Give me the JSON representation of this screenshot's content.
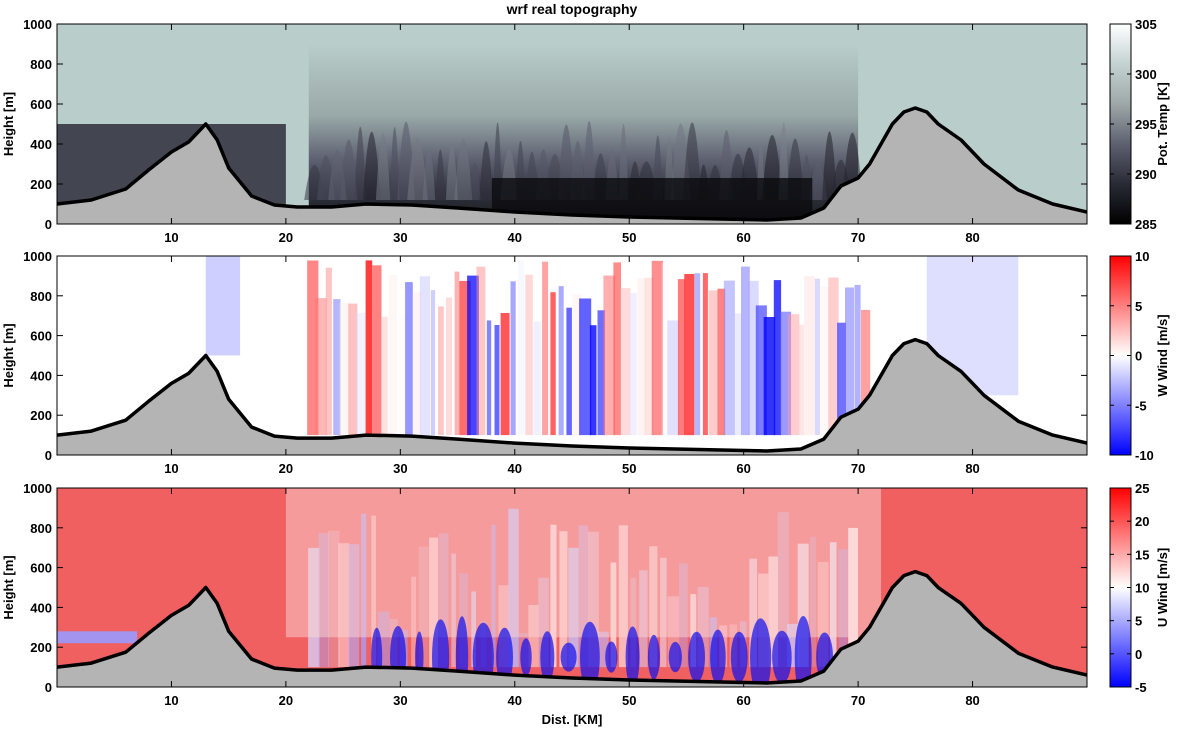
{
  "chart_data": [
    {
      "type": "heatmap",
      "title": "wrf real topography",
      "xlabel": "",
      "ylabel": "Height [m]",
      "colorbar_label": "Pot. Temp [K]",
      "xlim": [
        0,
        90
      ],
      "ylim": [
        0,
        1000
      ],
      "x_ticks": [
        10,
        20,
        30,
        40,
        50,
        60,
        70,
        80
      ],
      "y_ticks": [
        0,
        200,
        400,
        600,
        800,
        1000
      ],
      "clim": [
        285,
        305
      ],
      "colorbar_ticks": [
        285,
        290,
        295,
        300,
        305
      ],
      "colormap": [
        "#000000",
        "#2a2a36",
        "#5e6070",
        "#9ea8a8",
        "#c4d3d0",
        "#ffffff"
      ],
      "background_color": "#b9cdca",
      "terrain_fill": "#b4b4b4",
      "stripe_x_range": [
        22,
        70
      ]
    },
    {
      "type": "heatmap",
      "title": "",
      "xlabel": "",
      "ylabel": "Height [m]",
      "colorbar_label": "W Wind [m/s]",
      "xlim": [
        0,
        90
      ],
      "ylim": [
        0,
        1000
      ],
      "x_ticks": [
        10,
        20,
        30,
        40,
        50,
        60,
        70,
        80
      ],
      "y_ticks": [
        0,
        200,
        400,
        600,
        800,
        1000
      ],
      "clim": [
        -10,
        10
      ],
      "colorbar_ticks": [
        -10,
        -5,
        0,
        5,
        10
      ],
      "colormap": [
        "#0000ff",
        "#ffffff",
        "#ff0000"
      ],
      "background_color": "#ffffff",
      "terrain_fill": "#b4b4b4",
      "stripe_x_range": [
        22,
        71
      ]
    },
    {
      "type": "heatmap",
      "title": "",
      "xlabel": "Dist. [KM]",
      "ylabel": "Height [m]",
      "colorbar_label": "U Wind [m/s]",
      "xlim": [
        0,
        90
      ],
      "ylim": [
        0,
        1000
      ],
      "x_ticks": [
        10,
        20,
        30,
        40,
        50,
        60,
        70,
        80
      ],
      "y_ticks": [
        0,
        200,
        400,
        600,
        800,
        1000
      ],
      "clim": [
        -5,
        25
      ],
      "colorbar_ticks": [
        -5,
        0,
        5,
        10,
        15,
        20,
        25
      ],
      "colormap": [
        "#0000ff",
        "#ffffff",
        "#ff0000"
      ],
      "background_color": "#f06060",
      "terrain_fill": "#b4b4b4",
      "stripe_x_range": [
        22,
        70
      ]
    }
  ],
  "terrain_profile": {
    "x": [
      0,
      3,
      6,
      8,
      10,
      11.5,
      13,
      14,
      15,
      17,
      19,
      21,
      24,
      27,
      31,
      35,
      40,
      45,
      50,
      54,
      58,
      62,
      65,
      67,
      68.5,
      70,
      71,
      72,
      73,
      74,
      75,
      76,
      77,
      79,
      81,
      84,
      87,
      90
    ],
    "height": [
      100,
      120,
      175,
      270,
      360,
      410,
      500,
      420,
      280,
      140,
      95,
      85,
      85,
      100,
      95,
      80,
      60,
      45,
      35,
      30,
      25,
      20,
      30,
      80,
      190,
      230,
      300,
      400,
      500,
      560,
      580,
      560,
      500,
      420,
      300,
      170,
      100,
      60
    ]
  }
}
